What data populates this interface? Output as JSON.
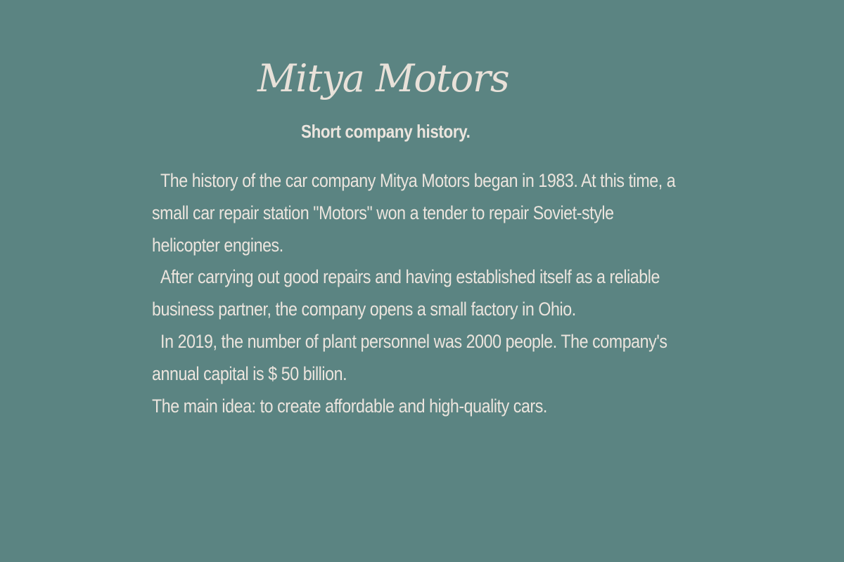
{
  "header": {
    "title": "Mitya Motors",
    "subtitle": "Short company history."
  },
  "history": {
    "paragraph_1": "  The history of the car company Mitya Motors began in 1983. At this time, a small car repair station \"Motors\" won a tender to repair Soviet-style helicopter engines.",
    "paragraph_2": "  After carrying out good repairs and having established itself as a reliable business partner, the company opens a small factory in Ohio.",
    "paragraph_3": "  In 2019, the number of plant personnel was 2000 people. The company's annual capital is $ 50 billion.",
    "paragraph_4": "The main idea: to create affordable and high-quality cars."
  },
  "colors": {
    "background": "#5b8482",
    "text": "#ece5de"
  }
}
